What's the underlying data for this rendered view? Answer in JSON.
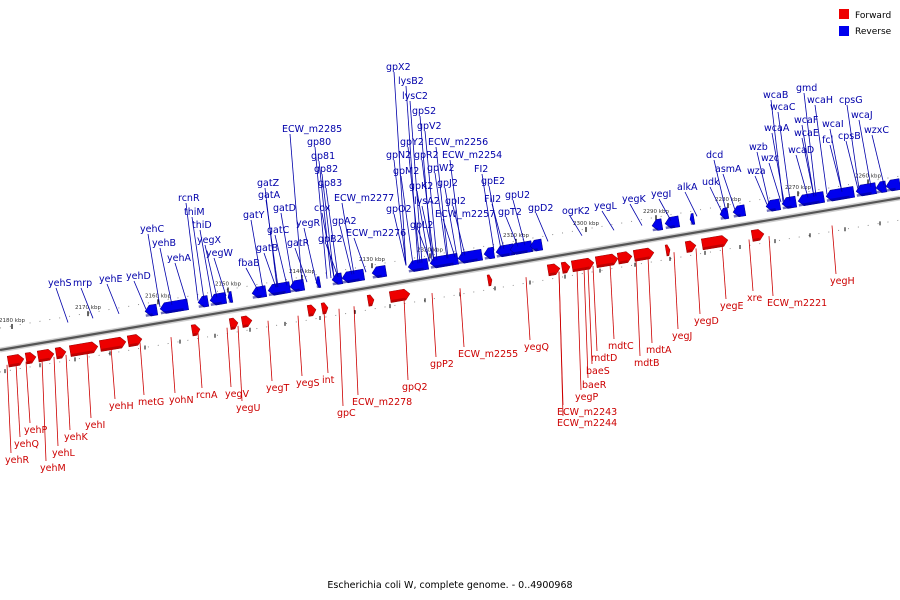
{
  "caption": "Escherichia coli W, complete genome. - 0..4900968",
  "legend": [
    {
      "label": "Forward",
      "color": "#ee0000"
    },
    {
      "label": "Reverse",
      "color": "#0000ee"
    }
  ],
  "colors": {
    "forward": "#ee0000",
    "forward_dark": "#990000",
    "reverse": "#0000ee",
    "reverse_dark": "#000088",
    "label_forward": "#cc0000",
    "label_reverse": "#0000aa",
    "axis": "#555555"
  },
  "ticks": [
    "2180 kbp",
    "2170 kbp",
    "2160 kbp",
    "2150 kbp",
    "2140 kbp",
    "2130 kbp",
    "2320 kbp",
    "2310 kbp",
    "2300 kbp",
    "2290 kbp",
    "2280 kbp",
    "2270 kbp",
    "2260 kbp"
  ],
  "reverse_labels": [
    "yehS",
    "mrp",
    "yehE",
    "yehD",
    "yehC",
    "yehB",
    "yehA",
    "rcnR",
    "thiM",
    "thiD",
    "yegX",
    "yegW",
    "fbaB",
    "gatY",
    "gatZ",
    "gatA",
    "gatB",
    "gatC",
    "gatD",
    "gatR",
    "yegR",
    "cox",
    "gp80",
    "gp81",
    "gp82",
    "gp83",
    "ECW_m2285",
    "gpA2",
    "gpB2",
    "ECW_m2277",
    "ECW_m2276",
    "gpX2",
    "lysB2",
    "lysC2",
    "gpS2",
    "gpV2",
    "gpY2",
    "gpR2",
    "gpN2",
    "gpM2",
    "gpW2",
    "gpK2",
    "gpJ2",
    "lysA2",
    "gpL2",
    "gpI2",
    "ECW_m2256",
    "ECW_m2254",
    "ECW_m2257",
    "gpO2",
    "FI2",
    "FII2",
    "gpE2",
    "gpU2",
    "gpT2",
    "gpD2",
    "ogrK2",
    "yegL",
    "yegK",
    "yegI",
    "alkA",
    "udk",
    "dcd",
    "asmA",
    "wza",
    "wzb",
    "wzc",
    "wcaA",
    "wcaB",
    "wcaC",
    "wcaD",
    "wcaE",
    "wcaF",
    "gmd",
    "wcaH",
    "wcaI",
    "fcl",
    "cpsG",
    "cpsB",
    "wcaJ",
    "wzxC"
  ],
  "forward_labels": [
    "yehR",
    "yehQ",
    "yehP",
    "yehM",
    "yehL",
    "yehK",
    "yehI",
    "yehH",
    "metG",
    "yohN",
    "rcnA",
    "yegV",
    "yegU",
    "yegT",
    "yegS",
    "int",
    "gpC",
    "ECW_m2278",
    "gpQ2",
    "gpP2",
    "ECW_m2255",
    "yegQ",
    "ECW_m2243",
    "ECW_m2244",
    "yegP",
    "baeR",
    "baeS",
    "mdtD",
    "mdtC",
    "mdtB",
    "mdtA",
    "yegJ",
    "yegD",
    "yegE",
    "xre",
    "ECW_m2221",
    "yegH"
  ]
}
